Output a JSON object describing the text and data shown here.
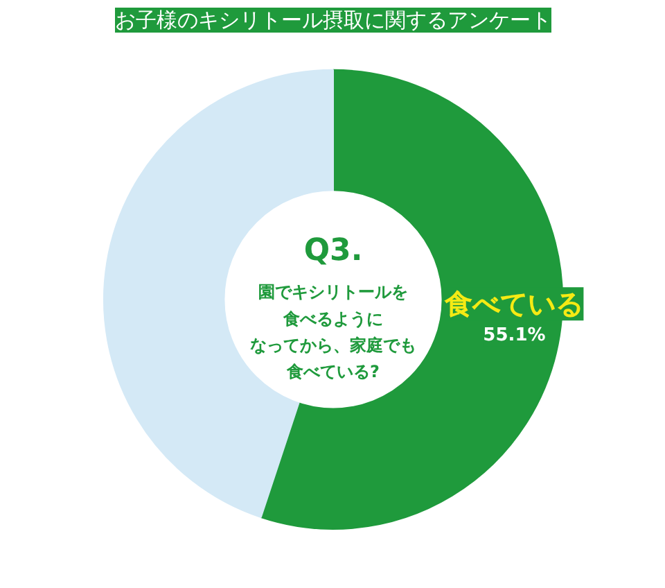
{
  "chart_data": {
    "type": "donut",
    "title": "お子様のキシリトール摂取に関するアンケート",
    "categories": [
      "食べている",
      null
    ],
    "values": [
      55.1,
      44.9
    ],
    "colors": [
      "#1f9a3c",
      "#d4e9f6"
    ],
    "value_labels": [
      "55.1%",
      null
    ],
    "annotations": [
      "Q3.",
      "園でキシリトールを",
      "食べるように",
      "なってから、家庭でも",
      "食べている?"
    ]
  }
}
